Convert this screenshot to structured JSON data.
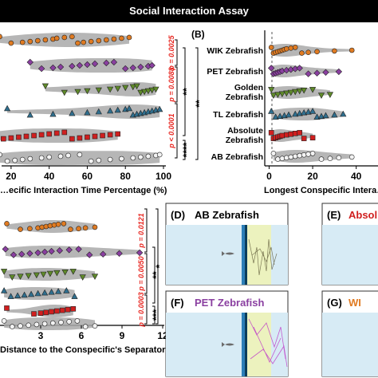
{
  "header": {
    "title": "Social Interaction Assay"
  },
  "colors": {
    "banner": "#000000",
    "violin": "#a9a9a9",
    "sig": "#e8251f",
    "tank": "#d7ebf5",
    "zone": "#eef3b8",
    "WIK": "#e07b22",
    "PET": "#8a3fa0",
    "Golden": "#5f8a2a",
    "TL": "#2f6f8f",
    "Absolute": "#d01f1f",
    "AB": "#f2f2f2"
  },
  "chart_data": [
    {
      "id": "A",
      "type": "violin-scatter",
      "xlabel": "…ecific Interaction Time Percentage (%)",
      "xlim": [
        10,
        100
      ],
      "xticks": [
        "20",
        "40",
        "60",
        "80",
        "100"
      ],
      "groups": [
        {
          "name": "WIK",
          "marker": "circle",
          "values": [
            14,
            20,
            26,
            30,
            34,
            38,
            42,
            44,
            48,
            52,
            55,
            58,
            62,
            66,
            70,
            74,
            78,
            82
          ]
        },
        {
          "name": "PET",
          "marker": "diamond",
          "values": [
            30,
            36,
            42,
            46,
            52,
            56,
            60,
            64,
            70,
            74,
            80,
            84,
            88,
            92,
            94
          ]
        },
        {
          "name": "Golden",
          "marker": "triangle-down",
          "values": [
            38,
            48,
            55,
            60,
            66,
            72,
            76,
            80,
            84,
            86,
            88,
            90,
            92,
            94,
            96
          ]
        },
        {
          "name": "TL",
          "marker": "triangle-up",
          "values": [
            18,
            30,
            42,
            52,
            60,
            66,
            72,
            76,
            80,
            82,
            84,
            86,
            88,
            90,
            92,
            94,
            96,
            98
          ]
        },
        {
          "name": "Absolute",
          "marker": "square",
          "values": [
            12,
            16,
            20,
            24,
            28,
            32,
            36,
            40,
            44,
            48,
            52,
            56,
            60,
            64,
            68,
            72,
            76
          ]
        },
        {
          "name": "AB",
          "marker": "circle",
          "values": [
            14,
            18,
            22,
            26,
            30,
            36,
            40,
            46,
            50,
            56,
            62,
            66,
            72,
            78,
            84,
            88,
            92,
            96,
            98
          ]
        }
      ],
      "significance": [
        {
          "p": "p = 0.0025"
        },
        {
          "p": "p = 0.0088"
        },
        {
          "p": "p < 0.0001"
        },
        {
          "stars": "**"
        },
        {
          "stars": "**"
        },
        {
          "stars": "****"
        }
      ]
    },
    {
      "id": "B",
      "type": "violin-scatter",
      "label": "(B)",
      "xlabel": "Longest Conspecific Intera…",
      "xlim": [
        -2,
        50
      ],
      "xticks": [
        "0",
        "20",
        "40"
      ],
      "groups": [
        {
          "name": "WIK Zebrafish",
          "marker": "circle",
          "values": [
            1,
            2,
            3,
            4,
            5,
            6,
            7,
            8,
            10,
            12,
            15,
            18,
            22,
            30,
            38
          ]
        },
        {
          "name": "PET Zebrafish",
          "marker": "diamond",
          "values": [
            1,
            2,
            3,
            4,
            5,
            6,
            8,
            10,
            12,
            14,
            18,
            22,
            26,
            32
          ]
        },
        {
          "name": "Golden Zebrafish",
          "marker": "triangle-down",
          "values": [
            1,
            2,
            4,
            6,
            8,
            10,
            12,
            14,
            16,
            20,
            24,
            28
          ]
        },
        {
          "name": "TL Zebrafish",
          "marker": "triangle-up",
          "values": [
            1,
            3,
            5,
            7,
            9,
            12,
            14,
            16,
            18,
            20,
            22,
            24,
            26,
            30,
            34
          ]
        },
        {
          "name": "Absolute Zebrafish",
          "marker": "square",
          "values": [
            1,
            2,
            3,
            4,
            5,
            6,
            8,
            10,
            12,
            14,
            16,
            20
          ]
        },
        {
          "name": "AB Zebrafish",
          "marker": "circle",
          "values": [
            2,
            4,
            6,
            8,
            10,
            12,
            14,
            16,
            18,
            20,
            24,
            28,
            32,
            38
          ]
        }
      ]
    },
    {
      "id": "C",
      "type": "violin-scatter",
      "xlabel": "Distance to the Conspecific's Separator (cm)",
      "xlim": [
        0,
        12
      ],
      "xticks": [
        "3",
        "6",
        "9",
        "12"
      ],
      "groups": [
        {
          "name": "WIK",
          "marker": "circle",
          "values": [
            0.5,
            1.5,
            2.2,
            2.8,
            3.1,
            3.4,
            3.7,
            4.0,
            4.3,
            4.7,
            5.2,
            5.8,
            6.3,
            7.0
          ]
        },
        {
          "name": "PET",
          "marker": "diamond",
          "values": [
            0.4,
            1.0,
            1.6,
            2.2,
            2.8,
            3.3,
            3.8,
            4.4,
            5.1,
            5.8,
            6.6,
            7.6,
            8.8,
            10.3
          ]
        },
        {
          "name": "Golden",
          "marker": "triangle-down",
          "values": [
            0.3,
            0.9,
            1.5,
            2.1,
            2.7,
            3.2,
            3.7,
            4.2,
            4.8,
            5.4,
            6.1,
            7.0
          ]
        },
        {
          "name": "TL",
          "marker": "triangle-up",
          "values": [
            0.3,
            0.8,
            1.3,
            1.8,
            2.3,
            2.8,
            3.3,
            3.8,
            4.3,
            4.9,
            5.5
          ]
        },
        {
          "name": "Absolute",
          "marker": "square",
          "values": [
            0.5,
            2.5,
            3.0,
            3.4,
            3.8,
            4.2,
            4.6,
            5.0,
            5.4
          ]
        },
        {
          "name": "AB",
          "marker": "circle",
          "values": [
            0.3,
            0.9,
            1.5,
            2.1,
            2.7,
            3.3,
            3.9,
            4.5,
            5.1,
            5.7,
            6.3,
            7.0
          ]
        }
      ],
      "significance": [
        {
          "p": "p = 0.0121"
        },
        {
          "p": "p = 0.0050"
        },
        {
          "p": "p = 0.0003"
        },
        {
          "stars": "*"
        },
        {
          "stars": "**"
        },
        {
          "stars": "***"
        }
      ]
    }
  ],
  "panels": {
    "D": {
      "label": "(D)",
      "title": "AB Zebrafish"
    },
    "E": {
      "label": "(E)",
      "title": "Absol"
    },
    "F": {
      "label": "(F)",
      "title": "PET Zebrafish"
    },
    "G": {
      "label": "(G)",
      "title": "WI"
    }
  }
}
